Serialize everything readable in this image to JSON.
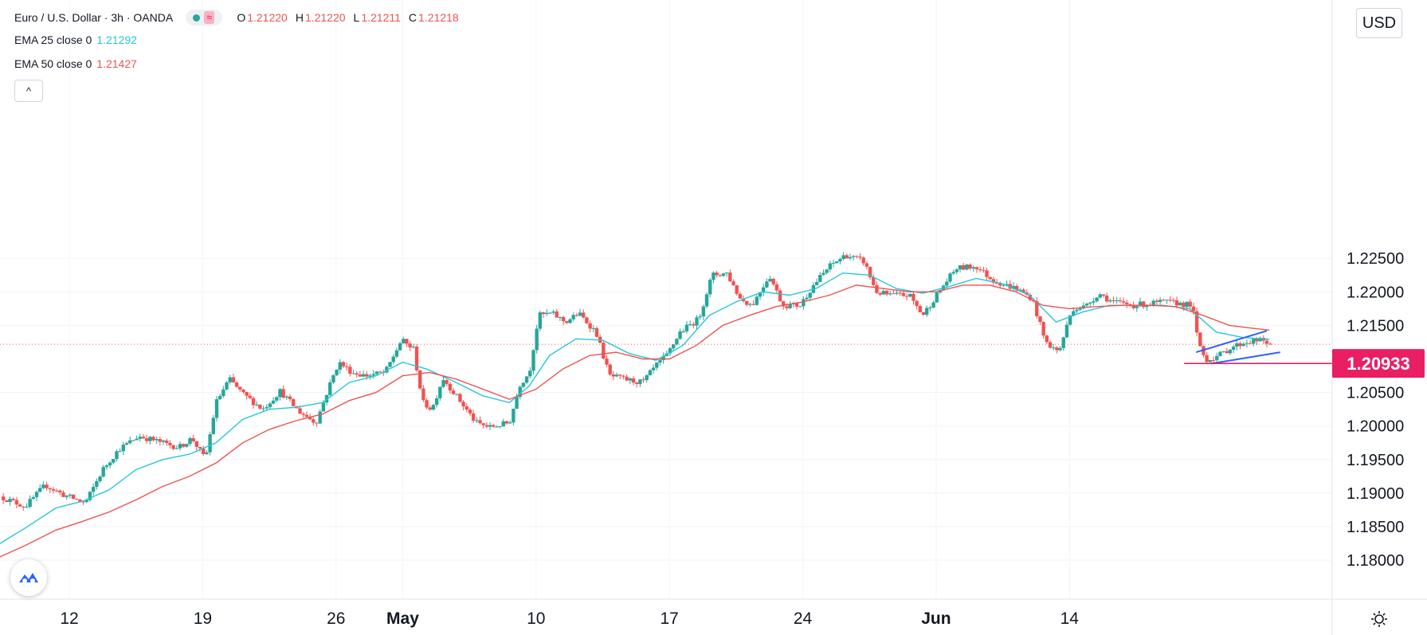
{
  "header": {
    "symbol": "Euro / U.S. Dollar · 3h · OANDA",
    "ohlc": [
      {
        "label": "O",
        "value": "1.21220"
      },
      {
        "label": "H",
        "value": "1.21220"
      },
      {
        "label": "L",
        "value": "1.21211"
      },
      {
        "label": "C",
        "value": "1.21218"
      }
    ]
  },
  "indicators": [
    {
      "label": "EMA 25 close 0",
      "value": "1.21292",
      "color": "#26c6da"
    },
    {
      "label": "EMA 50 close 0",
      "value": "1.21427",
      "color": "#ef5350"
    }
  ],
  "controls": {
    "currency": "USD",
    "collapse_icon": "^",
    "wave_icon": "≈"
  },
  "colors": {
    "up": "#26a69a",
    "down": "#ef5350",
    "ema25": "#26c6da",
    "ema50": "#ef5350",
    "trendline": "#2962ff",
    "highlight": "#e91e63"
  },
  "chart_data": {
    "type": "candlestick",
    "symbol": "EUR/USD",
    "timeframe": "3h",
    "y_axis": {
      "min": 1.1742,
      "max": 1.2635,
      "ticks": [
        "1.18000",
        "1.18500",
        "1.19000",
        "1.19500",
        "1.20000",
        "1.20500",
        "1.21500",
        "1.22000",
        "1.22500"
      ]
    },
    "x_axis": {
      "ticks": [
        "12",
        "19",
        "26",
        "May",
        "10",
        "17",
        "24",
        "Jun",
        "14"
      ],
      "tick_positions": [
        0.0,
        1.0,
        2.0,
        2.5,
        3.5,
        4.5,
        5.5,
        6.5,
        7.5
      ],
      "range": [
        -0.52,
        9.47
      ]
    },
    "highlight_price": {
      "value": 1.20933,
      "label": "1.20933"
    },
    "current_price": 1.21218,
    "ema25_last": 1.21292,
    "ema50_last": 1.21427,
    "trend_channel": {
      "upper": [
        [
          8.45,
          1.211
        ],
        [
          8.98,
          1.2142
        ]
      ],
      "lower": [
        [
          8.56,
          1.2093
        ],
        [
          9.08,
          1.211
        ]
      ]
    },
    "anchors": [
      [
        -0.52,
        1.1895
      ],
      [
        -0.33,
        1.188
      ],
      [
        -0.18,
        1.1912
      ],
      [
        -0.05,
        1.1898
      ],
      [
        0.12,
        1.1885
      ],
      [
        0.25,
        1.1935
      ],
      [
        0.37,
        1.1965
      ],
      [
        0.52,
        1.1985
      ],
      [
        0.65,
        1.1978
      ],
      [
        0.82,
        1.1968
      ],
      [
        0.92,
        1.1982
      ],
      [
        1.02,
        1.195
      ],
      [
        1.1,
        1.2035
      ],
      [
        1.2,
        1.207
      ],
      [
        1.3,
        1.2048
      ],
      [
        1.45,
        1.2025
      ],
      [
        1.58,
        1.2052
      ],
      [
        1.72,
        1.2022
      ],
      [
        1.85,
        1.2005
      ],
      [
        1.95,
        1.206
      ],
      [
        2.02,
        1.2095
      ],
      [
        2.12,
        1.208
      ],
      [
        2.22,
        1.2075
      ],
      [
        2.37,
        1.208
      ],
      [
        2.42,
        1.21
      ],
      [
        2.49,
        1.2128
      ],
      [
        2.58,
        1.2115
      ],
      [
        2.65,
        1.2035
      ],
      [
        2.72,
        1.2025
      ],
      [
        2.8,
        1.2072
      ],
      [
        2.92,
        1.204
      ],
      [
        3.05,
        1.2005
      ],
      [
        3.15,
        1.1998
      ],
      [
        3.3,
        1.2005
      ],
      [
        3.38,
        1.2062
      ],
      [
        3.45,
        1.208
      ],
      [
        3.52,
        1.2165
      ],
      [
        3.62,
        1.2168
      ],
      [
        3.72,
        1.2155
      ],
      [
        3.82,
        1.2168
      ],
      [
        3.95,
        1.214
      ],
      [
        4.05,
        1.2075
      ],
      [
        4.2,
        1.2068
      ],
      [
        4.3,
        1.2065
      ],
      [
        4.4,
        1.209
      ],
      [
        4.48,
        1.2105
      ],
      [
        4.58,
        1.214
      ],
      [
        4.72,
        1.216
      ],
      [
        4.82,
        1.2225
      ],
      [
        4.93,
        1.2228
      ],
      [
        5.03,
        1.219
      ],
      [
        5.12,
        1.218
      ],
      [
        5.25,
        1.2225
      ],
      [
        5.35,
        1.218
      ],
      [
        5.48,
        1.218
      ],
      [
        5.58,
        1.221
      ],
      [
        5.7,
        1.2238
      ],
      [
        5.82,
        1.2255
      ],
      [
        5.96,
        1.2245
      ],
      [
        6.05,
        1.22
      ],
      [
        6.15,
        1.2195
      ],
      [
        6.3,
        1.2195
      ],
      [
        6.4,
        1.2165
      ],
      [
        6.52,
        1.22
      ],
      [
        6.65,
        1.2235
      ],
      [
        6.8,
        1.2238
      ],
      [
        6.92,
        1.2218
      ],
      [
        7.02,
        1.221
      ],
      [
        7.1,
        1.2205
      ],
      [
        7.22,
        1.219
      ],
      [
        7.32,
        1.2125
      ],
      [
        7.42,
        1.211
      ],
      [
        7.52,
        1.2175
      ],
      [
        7.62,
        1.2178
      ],
      [
        7.72,
        1.2198
      ],
      [
        7.82,
        1.2185
      ],
      [
        7.98,
        1.218
      ],
      [
        8.12,
        1.2183
      ],
      [
        8.22,
        1.2185
      ],
      [
        8.32,
        1.2183
      ],
      [
        8.42,
        1.218
      ],
      [
        8.46,
        1.213
      ],
      [
        8.52,
        1.2098
      ],
      [
        8.62,
        1.2105
      ],
      [
        8.72,
        1.2118
      ],
      [
        8.82,
        1.2125
      ],
      [
        8.92,
        1.2128
      ],
      [
        9.02,
        1.2122
      ]
    ],
    "ema25_path": [
      [
        -0.52,
        1.1825
      ],
      [
        -0.33,
        1.1848
      ],
      [
        -0.1,
        1.1878
      ],
      [
        0.1,
        1.1888
      ],
      [
        0.3,
        1.1905
      ],
      [
        0.5,
        1.1935
      ],
      [
        0.7,
        1.195
      ],
      [
        0.9,
        1.1958
      ],
      [
        1.1,
        1.1975
      ],
      [
        1.3,
        1.201
      ],
      [
        1.5,
        1.2025
      ],
      [
        1.7,
        1.2028
      ],
      [
        1.9,
        1.2035
      ],
      [
        2.1,
        1.2065
      ],
      [
        2.3,
        1.2075
      ],
      [
        2.5,
        1.2095
      ],
      [
        2.68,
        1.2085
      ],
      [
        2.9,
        1.2065
      ],
      [
        3.1,
        1.2045
      ],
      [
        3.3,
        1.2035
      ],
      [
        3.45,
        1.206
      ],
      [
        3.6,
        1.2105
      ],
      [
        3.8,
        1.213
      ],
      [
        4.0,
        1.2128
      ],
      [
        4.2,
        1.2108
      ],
      [
        4.4,
        1.2098
      ],
      [
        4.6,
        1.212
      ],
      [
        4.8,
        1.2165
      ],
      [
        5.0,
        1.2185
      ],
      [
        5.2,
        1.22
      ],
      [
        5.4,
        1.2195
      ],
      [
        5.6,
        1.2205
      ],
      [
        5.8,
        1.2228
      ],
      [
        6.0,
        1.2225
      ],
      [
        6.2,
        1.2205
      ],
      [
        6.4,
        1.2198
      ],
      [
        6.6,
        1.2208
      ],
      [
        6.8,
        1.222
      ],
      [
        7.0,
        1.2212
      ],
      [
        7.2,
        1.2195
      ],
      [
        7.4,
        1.2155
      ],
      [
        7.6,
        1.217
      ],
      [
        7.8,
        1.218
      ],
      [
        8.0,
        1.218
      ],
      [
        8.2,
        1.218
      ],
      [
        8.4,
        1.2175
      ],
      [
        8.6,
        1.214
      ],
      [
        8.8,
        1.2132
      ],
      [
        9.0,
        1.2129
      ]
    ],
    "ema50_path": [
      [
        -0.52,
        1.1805
      ],
      [
        -0.33,
        1.1822
      ],
      [
        -0.1,
        1.1845
      ],
      [
        0.1,
        1.1858
      ],
      [
        0.3,
        1.1872
      ],
      [
        0.5,
        1.189
      ],
      [
        0.7,
        1.191
      ],
      [
        0.9,
        1.1925
      ],
      [
        1.1,
        1.1945
      ],
      [
        1.3,
        1.1975
      ],
      [
        1.5,
        1.1995
      ],
      [
        1.7,
        1.2008
      ],
      [
        1.9,
        1.2018
      ],
      [
        2.1,
        1.2038
      ],
      [
        2.3,
        1.205
      ],
      [
        2.5,
        1.2075
      ],
      [
        2.7,
        1.208
      ],
      [
        2.9,
        1.207
      ],
      [
        3.1,
        1.2055
      ],
      [
        3.3,
        1.204
      ],
      [
        3.5,
        1.2055
      ],
      [
        3.7,
        1.2085
      ],
      [
        3.9,
        1.2105
      ],
      [
        4.1,
        1.211
      ],
      [
        4.3,
        1.21
      ],
      [
        4.5,
        1.21
      ],
      [
        4.7,
        1.212
      ],
      [
        4.9,
        1.215
      ],
      [
        5.1,
        1.2165
      ],
      [
        5.3,
        1.2178
      ],
      [
        5.5,
        1.2185
      ],
      [
        5.7,
        1.2195
      ],
      [
        5.9,
        1.221
      ],
      [
        6.1,
        1.2205
      ],
      [
        6.3,
        1.22
      ],
      [
        6.5,
        1.22
      ],
      [
        6.7,
        1.221
      ],
      [
        6.9,
        1.221
      ],
      [
        7.1,
        1.22
      ],
      [
        7.3,
        1.218
      ],
      [
        7.5,
        1.2175
      ],
      [
        7.7,
        1.2178
      ],
      [
        7.9,
        1.218
      ],
      [
        8.1,
        1.218
      ],
      [
        8.3,
        1.2178
      ],
      [
        8.5,
        1.2165
      ],
      [
        8.7,
        1.215
      ],
      [
        8.9,
        1.2145
      ],
      [
        9.0,
        1.2143
      ]
    ]
  }
}
